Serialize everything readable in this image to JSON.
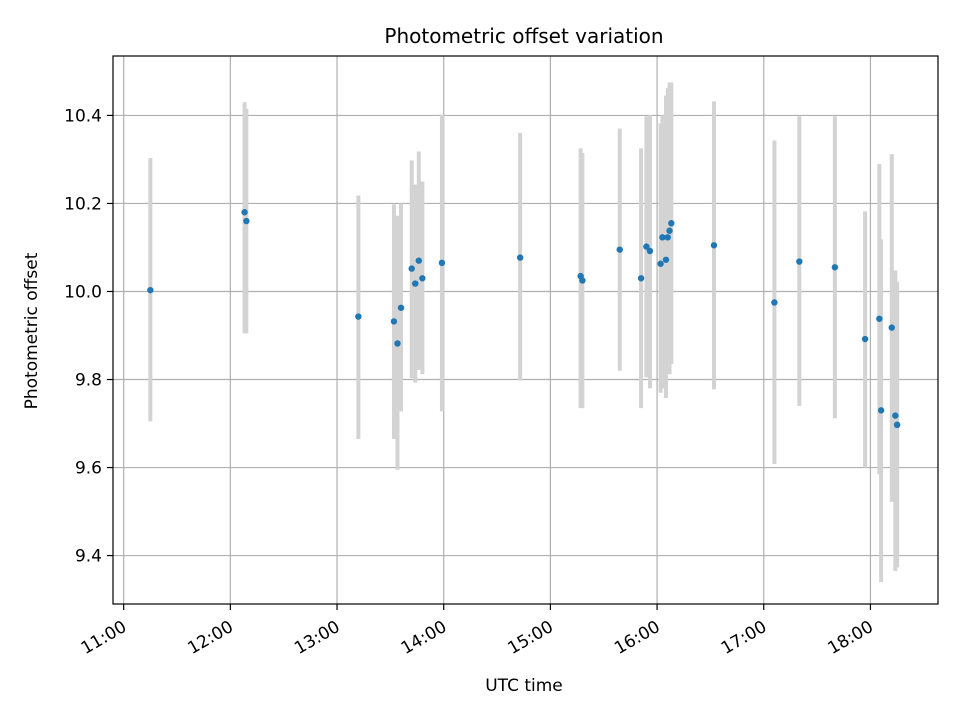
{
  "chart_data": {
    "type": "scatter",
    "title": "Photometric offset variation",
    "xlabel": "UTC time",
    "ylabel": "Photometric offset",
    "xlim": [
      "10:54",
      "18:38"
    ],
    "ylim": [
      9.29,
      10.535
    ],
    "grid": true,
    "x_ticks": [
      "11:00",
      "12:00",
      "13:00",
      "14:00",
      "15:00",
      "16:00",
      "17:00",
      "18:00"
    ],
    "y_ticks": [
      "9.4",
      "9.6",
      "9.8",
      "10.0",
      "10.2",
      "10.4"
    ],
    "colors": {
      "point": "#1f77b4",
      "errorbar": "#d3d3d3",
      "grid": "#b0b0b0"
    },
    "series": [
      {
        "points": [
          {
            "x": "11:15",
            "y": 10.003,
            "ylow": 9.705,
            "yhigh": 10.303
          },
          {
            "x": "12:08",
            "y": 10.18,
            "ylow": 9.905,
            "yhigh": 10.43
          },
          {
            "x": "12:09",
            "y": 10.16,
            "ylow": 9.905,
            "yhigh": 10.415
          },
          {
            "x": "13:12",
            "y": 9.943,
            "ylow": 9.665,
            "yhigh": 10.218
          },
          {
            "x": "13:32",
            "y": 9.932,
            "ylow": 9.665,
            "yhigh": 10.198
          },
          {
            "x": "13:34",
            "y": 9.882,
            "ylow": 9.595,
            "yhigh": 10.172
          },
          {
            "x": "13:36",
            "y": 9.963,
            "ylow": 9.728,
            "yhigh": 10.2
          },
          {
            "x": "13:42",
            "y": 10.052,
            "ylow": 9.803,
            "yhigh": 10.298
          },
          {
            "x": "13:44",
            "y": 10.018,
            "ylow": 9.793,
            "yhigh": 10.243
          },
          {
            "x": "13:46",
            "y": 10.07,
            "ylow": 9.822,
            "yhigh": 10.318
          },
          {
            "x": "13:48",
            "y": 10.03,
            "ylow": 9.812,
            "yhigh": 10.25
          },
          {
            "x": "13:59",
            "y": 10.065,
            "ylow": 9.728,
            "yhigh": 10.402
          },
          {
            "x": "14:43",
            "y": 10.077,
            "ylow": 9.798,
            "yhigh": 10.36
          },
          {
            "x": "15:17",
            "y": 10.035,
            "ylow": 9.735,
            "yhigh": 10.325
          },
          {
            "x": "15:18",
            "y": 10.025,
            "ylow": 9.735,
            "yhigh": 10.315
          },
          {
            "x": "15:39",
            "y": 10.095,
            "ylow": 9.82,
            "yhigh": 10.37
          },
          {
            "x": "15:51",
            "y": 10.03,
            "ylow": 9.735,
            "yhigh": 10.325
          },
          {
            "x": "15:54",
            "y": 10.102,
            "ylow": 9.805,
            "yhigh": 10.398
          },
          {
            "x": "15:56",
            "y": 10.092,
            "ylow": 9.78,
            "yhigh": 10.4
          },
          {
            "x": "16:02",
            "y": 10.063,
            "ylow": 9.77,
            "yhigh": 10.382
          },
          {
            "x": "16:03",
            "y": 10.123,
            "ylow": 9.78,
            "yhigh": 10.4
          },
          {
            "x": "16:05",
            "y": 10.072,
            "ylow": 9.758,
            "yhigh": 10.445
          },
          {
            "x": "16:06",
            "y": 10.123,
            "ylow": 9.84,
            "yhigh": 10.462
          },
          {
            "x": "16:07",
            "y": 10.138,
            "ylow": 9.812,
            "yhigh": 10.475
          },
          {
            "x": "16:08",
            "y": 10.155,
            "ylow": 9.835,
            "yhigh": 10.475
          },
          {
            "x": "16:32",
            "y": 10.105,
            "ylow": 9.778,
            "yhigh": 10.432
          },
          {
            "x": "17:06",
            "y": 9.975,
            "ylow": 9.608,
            "yhigh": 10.343
          },
          {
            "x": "17:20",
            "y": 10.068,
            "ylow": 9.74,
            "yhigh": 10.398
          },
          {
            "x": "17:40",
            "y": 10.055,
            "ylow": 9.712,
            "yhigh": 10.398
          },
          {
            "x": "17:57",
            "y": 9.892,
            "ylow": 9.6,
            "yhigh": 10.182
          },
          {
            "x": "18:05",
            "y": 9.938,
            "ylow": 9.585,
            "yhigh": 10.29
          },
          {
            "x": "18:06",
            "y": 9.73,
            "ylow": 9.34,
            "yhigh": 10.118
          },
          {
            "x": "18:12",
            "y": 9.918,
            "ylow": 9.522,
            "yhigh": 10.312
          },
          {
            "x": "18:14",
            "y": 9.718,
            "ylow": 9.365,
            "yhigh": 10.048
          },
          {
            "x": "18:15",
            "y": 9.697,
            "ylow": 9.373,
            "yhigh": 10.022
          },
          {
            "x": "18:15",
            "y": 9.697,
            "ylow": 9.395,
            "yhigh": 10.0
          }
        ]
      }
    ]
  }
}
